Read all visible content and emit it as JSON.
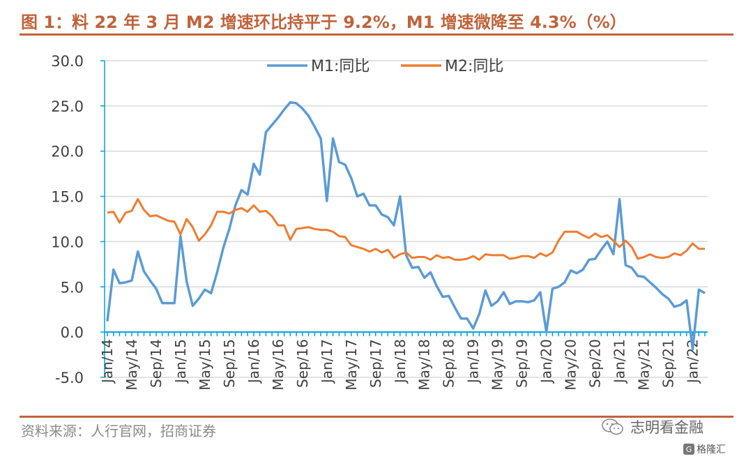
{
  "figure": {
    "title": "图 1：料 22 年 3 月 M2 增速环比持平于 9.2%，M1 增速微降至 4.3%（%）",
    "source": "资料来源：人行官网，招商证券",
    "watermark": "志明看金融",
    "watermark_icon": "wechat-icon",
    "brand": "格隆汇",
    "brand_icon": "gelonghui-logo-icon",
    "accent_color": "#c0633a"
  },
  "chart_data": {
    "type": "line",
    "title": "",
    "xlabel": "",
    "ylabel": "",
    "ylim": [
      -5,
      30
    ],
    "yticks": [
      "30.0",
      "25.0",
      "20.0",
      "15.0",
      "10.0",
      "5.0",
      "0.0",
      "-5.0"
    ],
    "grid": true,
    "legend_position": "top-center",
    "x": [
      "Jan/14",
      "Feb/14",
      "Mar/14",
      "Apr/14",
      "May/14",
      "Jun/14",
      "Jul/14",
      "Aug/14",
      "Sep/14",
      "Oct/14",
      "Nov/14",
      "Dec/14",
      "Jan/15",
      "Feb/15",
      "Mar/15",
      "Apr/15",
      "May/15",
      "Jun/15",
      "Jul/15",
      "Aug/15",
      "Sep/15",
      "Oct/15",
      "Nov/15",
      "Dec/15",
      "Jan/16",
      "Feb/16",
      "Mar/16",
      "Apr/16",
      "May/16",
      "Jun/16",
      "Jul/16",
      "Aug/16",
      "Sep/16",
      "Oct/16",
      "Nov/16",
      "Dec/16",
      "Jan/17",
      "Feb/17",
      "Mar/17",
      "Apr/17",
      "May/17",
      "Jun/17",
      "Jul/17",
      "Aug/17",
      "Sep/17",
      "Oct/17",
      "Nov/17",
      "Dec/17",
      "Jan/18",
      "Feb/18",
      "Mar/18",
      "Apr/18",
      "May/18",
      "Jun/18",
      "Jul/18",
      "Aug/18",
      "Sep/18",
      "Oct/18",
      "Nov/18",
      "Dec/18",
      "Jan/19",
      "Feb/19",
      "Mar/19",
      "Apr/19",
      "May/19",
      "Jun/19",
      "Jul/19",
      "Aug/19",
      "Sep/19",
      "Oct/19",
      "Nov/19",
      "Dec/19",
      "Jan/20",
      "Feb/20",
      "Mar/20",
      "Apr/20",
      "May/20",
      "Jun/20",
      "Jul/20",
      "Aug/20",
      "Sep/20",
      "Oct/20",
      "Nov/20",
      "Dec/20",
      "Jan/21",
      "Feb/21",
      "Mar/21",
      "Apr/21",
      "May/21",
      "Jun/21",
      "Jul/21",
      "Aug/21",
      "Sep/21",
      "Oct/21",
      "Nov/21",
      "Dec/21",
      "Jan/22",
      "Feb/22",
      "Mar/22"
    ],
    "xtick_labels": [
      "Jan/14",
      "May/14",
      "Sep/14",
      "Jan/15",
      "May/15",
      "Sep/15",
      "Jan/16",
      "May/16",
      "Sep/16",
      "Jan/17",
      "May/17",
      "Sep/17",
      "Jan/18",
      "May/18",
      "Sep/18",
      "Jan/19",
      "May/19",
      "Sep/19",
      "Jan/20",
      "May/20",
      "Sep/20",
      "Jan/21",
      "May/21",
      "Sep/21",
      "Jan/22"
    ],
    "series": [
      {
        "name": "M1:同比",
        "color": "#5b9bd5",
        "values": [
          1.2,
          6.9,
          5.4,
          5.5,
          5.7,
          8.9,
          6.7,
          5.7,
          4.8,
          3.2,
          3.2,
          3.2,
          10.6,
          5.6,
          2.9,
          3.7,
          4.7,
          4.3,
          6.6,
          9.3,
          11.4,
          14.0,
          15.7,
          15.2,
          18.6,
          17.4,
          22.1,
          22.9,
          23.7,
          24.6,
          25.4,
          25.3,
          24.7,
          23.9,
          22.7,
          21.4,
          14.5,
          21.4,
          18.8,
          18.5,
          17.0,
          15.0,
          15.3,
          14.0,
          14.0,
          13.0,
          12.7,
          11.8,
          15.0,
          8.5,
          7.1,
          7.2,
          6.0,
          6.6,
          5.1,
          3.9,
          4.0,
          2.7,
          1.5,
          1.5,
          0.4,
          2.0,
          4.6,
          2.9,
          3.4,
          4.4,
          3.1,
          3.4,
          3.4,
          3.3,
          3.5,
          4.4,
          0.0,
          4.8,
          5.0,
          5.5,
          6.8,
          6.5,
          6.9,
          8.0,
          8.1,
          9.1,
          10.0,
          8.6,
          14.7,
          7.4,
          7.1,
          6.2,
          6.1,
          5.5,
          4.9,
          4.2,
          3.7,
          2.8,
          3.0,
          3.5,
          -1.9,
          4.7,
          4.3
        ]
      },
      {
        "name": "M2:同比",
        "color": "#ed7d31",
        "values": [
          13.2,
          13.3,
          12.1,
          13.2,
          13.4,
          14.7,
          13.5,
          12.8,
          12.9,
          12.6,
          12.3,
          12.2,
          10.8,
          12.5,
          11.6,
          10.1,
          10.8,
          11.8,
          13.3,
          13.3,
          13.1,
          13.5,
          13.7,
          13.3,
          14.0,
          13.3,
          13.4,
          12.8,
          11.8,
          11.8,
          10.2,
          11.4,
          11.5,
          11.6,
          11.4,
          11.3,
          11.3,
          11.1,
          10.6,
          10.5,
          9.6,
          9.4,
          9.2,
          8.9,
          9.2,
          8.8,
          9.1,
          8.2,
          8.6,
          8.8,
          8.2,
          8.3,
          8.3,
          8.0,
          8.5,
          8.2,
          8.3,
          8.0,
          8.0,
          8.1,
          8.4,
          8.0,
          8.6,
          8.5,
          8.5,
          8.5,
          8.1,
          8.2,
          8.4,
          8.4,
          8.2,
          8.7,
          8.4,
          8.8,
          10.1,
          11.1,
          11.1,
          11.1,
          10.7,
          10.4,
          10.9,
          10.5,
          10.7,
          10.1,
          9.4,
          10.1,
          9.4,
          8.1,
          8.3,
          8.6,
          8.3,
          8.2,
          8.3,
          8.7,
          8.5,
          9.0,
          9.8,
          9.2,
          9.2
        ]
      }
    ]
  }
}
